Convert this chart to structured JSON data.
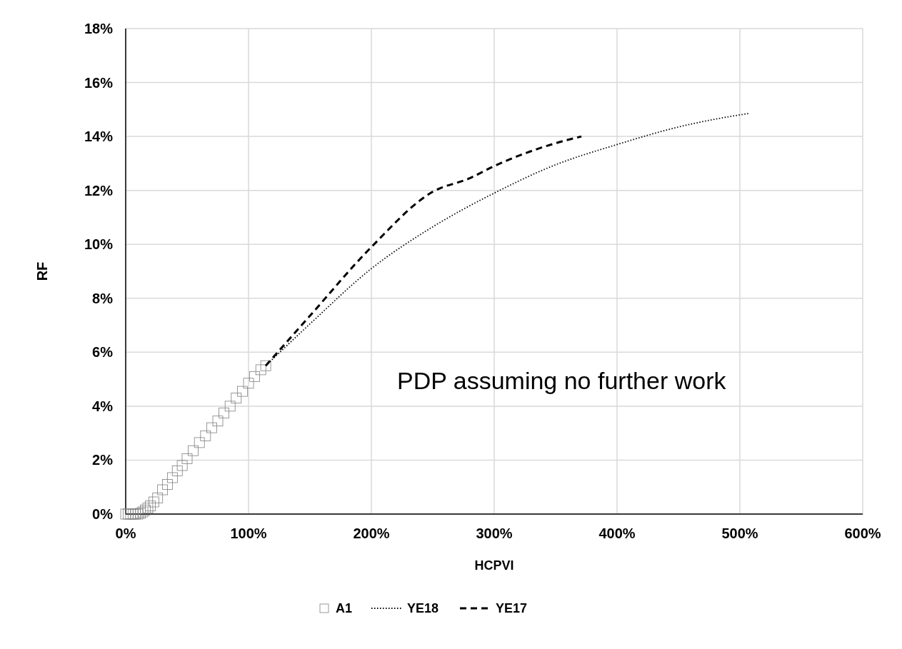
{
  "chart_data": {
    "type": "scatter",
    "xlabel": "HCPVI",
    "ylabel": "RF",
    "xlim": [
      0,
      600
    ],
    "ylim": [
      0,
      18
    ],
    "xticks": [
      {
        "value": 0,
        "label": "0%"
      },
      {
        "value": 100,
        "label": "100%"
      },
      {
        "value": 200,
        "label": "200%"
      },
      {
        "value": 300,
        "label": "300%"
      },
      {
        "value": 400,
        "label": "400%"
      },
      {
        "value": 500,
        "label": "500%"
      },
      {
        "value": 600,
        "label": "600%"
      }
    ],
    "yticks": [
      {
        "value": 0,
        "label": "0%"
      },
      {
        "value": 2,
        "label": "2%"
      },
      {
        "value": 4,
        "label": "4%"
      },
      {
        "value": 6,
        "label": "6%"
      },
      {
        "value": 8,
        "label": "8%"
      },
      {
        "value": 10,
        "label": "10%"
      },
      {
        "value": 12,
        "label": "12%"
      },
      {
        "value": 14,
        "label": "14%"
      },
      {
        "value": 16,
        "label": "16%"
      },
      {
        "value": 18,
        "label": "18%"
      }
    ],
    "grid": true,
    "legend": "bottom",
    "annotations": [
      "PDP assuming no further work"
    ],
    "series": [
      {
        "name": "A1",
        "marker": "square",
        "color": "#7f7f7f",
        "x": [
          0,
          2,
          4,
          6,
          8,
          10,
          12,
          14,
          16,
          18,
          20,
          23,
          26,
          30,
          34,
          38,
          42,
          46,
          50,
          55,
          60,
          65,
          70,
          75,
          80,
          85,
          90,
          95,
          100,
          105,
          110,
          114
        ],
        "values": [
          0,
          0,
          0,
          0,
          0,
          0,
          0.03,
          0.08,
          0.15,
          0.22,
          0.3,
          0.45,
          0.6,
          0.9,
          1.1,
          1.35,
          1.6,
          1.8,
          2.05,
          2.35,
          2.65,
          2.9,
          3.2,
          3.45,
          3.75,
          4.0,
          4.3,
          4.55,
          4.85,
          5.1,
          5.35,
          5.5
        ]
      },
      {
        "name": "YE18",
        "type": "line",
        "line_style": "dotted",
        "marker": "none",
        "color": "#000000",
        "x": [
          114,
          150,
          200,
          250,
          300,
          350,
          400,
          450,
          500,
          507
        ],
        "values": [
          5.5,
          7.05,
          9.1,
          10.65,
          11.9,
          12.95,
          13.7,
          14.35,
          14.8,
          14.85
        ]
      },
      {
        "name": "YE17",
        "type": "line",
        "line_style": "dashed",
        "marker": "none",
        "color": "#000000",
        "x": [
          114,
          150,
          200,
          250,
          280,
          300,
          350,
          371
        ],
        "values": [
          5.5,
          7.35,
          9.9,
          11.95,
          12.45,
          12.9,
          13.75,
          14.0
        ]
      }
    ]
  }
}
